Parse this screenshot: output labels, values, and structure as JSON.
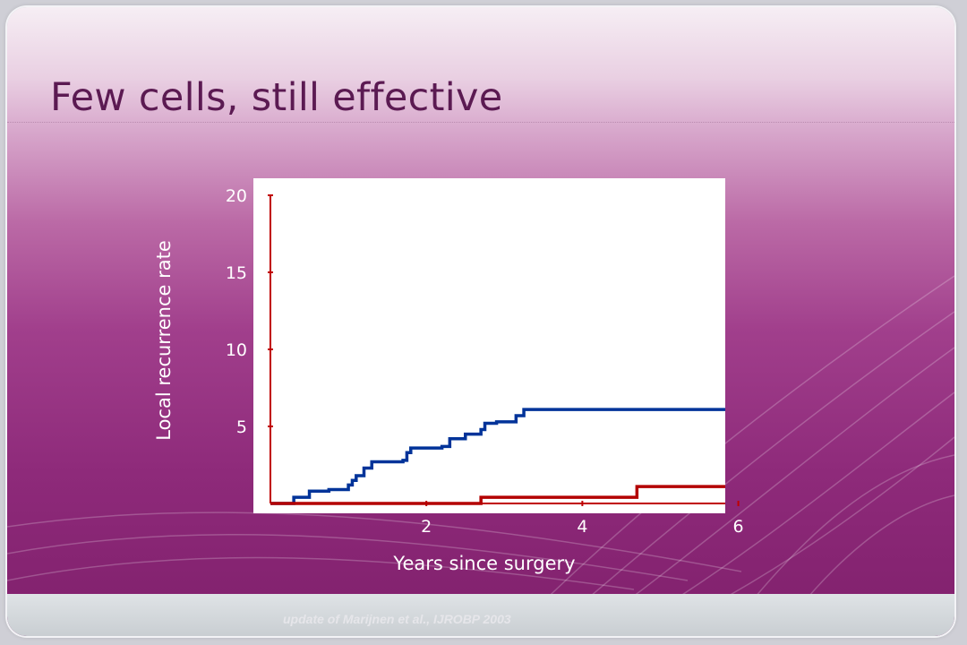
{
  "slide": {
    "title": "Few cells, still effective",
    "source": "update of Marijnen et al., IJROBP 2003"
  },
  "colors": {
    "title": "#5b1a52",
    "plot_background": "#ffffff",
    "axis": "#c00000",
    "series_tme": "#003399",
    "series_rt_tme": "#b30000"
  },
  "chart_data": {
    "type": "line",
    "step": true,
    "xlabel": "Years since surgery",
    "ylabel": "Local recurrence rate",
    "xlim": [
      0,
      6.2
    ],
    "ylim": [
      0,
      20
    ],
    "xticks": [
      2,
      4,
      6
    ],
    "yticks": [
      5,
      10,
      15,
      20
    ],
    "grid": false,
    "series": [
      {
        "color": "#003399",
        "x": [
          0,
          0.3,
          0.5,
          0.75,
          1.0,
          1.05,
          1.1,
          1.2,
          1.3,
          1.7,
          1.75,
          1.8,
          2.2,
          2.3,
          2.5,
          2.7,
          2.75,
          2.9,
          3.15,
          3.25,
          6.2
        ],
        "y": [
          0,
          0.4,
          0.8,
          0.9,
          1.2,
          1.5,
          1.8,
          2.3,
          2.7,
          2.8,
          3.3,
          3.6,
          3.7,
          4.2,
          4.5,
          4.8,
          5.2,
          5.3,
          5.7,
          6.1,
          6.1
        ]
      },
      {
        "color": "#b30000",
        "x": [
          0,
          2.7,
          4.7,
          6.2
        ],
        "y": [
          0,
          0.4,
          1.1,
          1.1
        ]
      }
    ]
  }
}
